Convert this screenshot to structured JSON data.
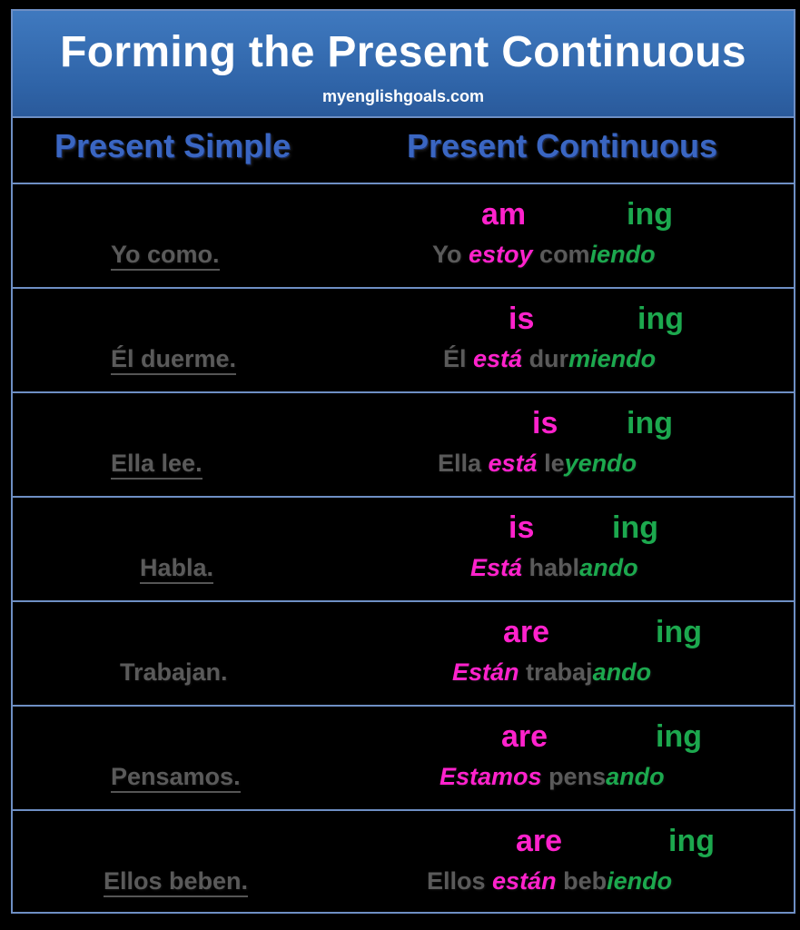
{
  "header": {
    "title": "Forming the Present Continuous",
    "site": "myenglishgoals.com"
  },
  "columns": {
    "left": "Present Simple",
    "right": "Present Continuous"
  },
  "rows": [
    {
      "aux": "am",
      "ing": "ing",
      "simple": "Yo como.",
      "subject": "Yo ",
      "aux_es": "estoy",
      "stem": " com",
      "ending": "iendo"
    },
    {
      "aux": "is",
      "ing": "ing",
      "simple": "Él duerme.",
      "subject": "Él ",
      "aux_es": "está",
      "stem": " dur",
      "ending": "miendo"
    },
    {
      "aux": "is",
      "ing": "ing",
      "simple": "Ella lee.",
      "subject": "Ella ",
      "aux_es": "está",
      "stem": " le",
      "ending": "yendo"
    },
    {
      "aux": "is",
      "ing": "ing",
      "simple": "Habla.",
      "subject": "",
      "aux_es": "Está",
      "stem": " habl",
      "ending": "ando"
    },
    {
      "aux": "are",
      "ing": "ing",
      "simple": "Trabajan.",
      "subject": "",
      "aux_es": "Están",
      "stem": " trabaj",
      "ending": "ando"
    },
    {
      "aux": "are",
      "ing": "ing",
      "simple": "Pensamos.",
      "subject": "",
      "aux_es": "Estamos",
      "stem": " pens",
      "ending": "ando"
    },
    {
      "aux": "are",
      "ing": "ing",
      "simple": "Ellos beben.",
      "subject": "Ellos ",
      "aux_es": "están",
      "stem": " beb",
      "ending": "iendo"
    }
  ]
}
